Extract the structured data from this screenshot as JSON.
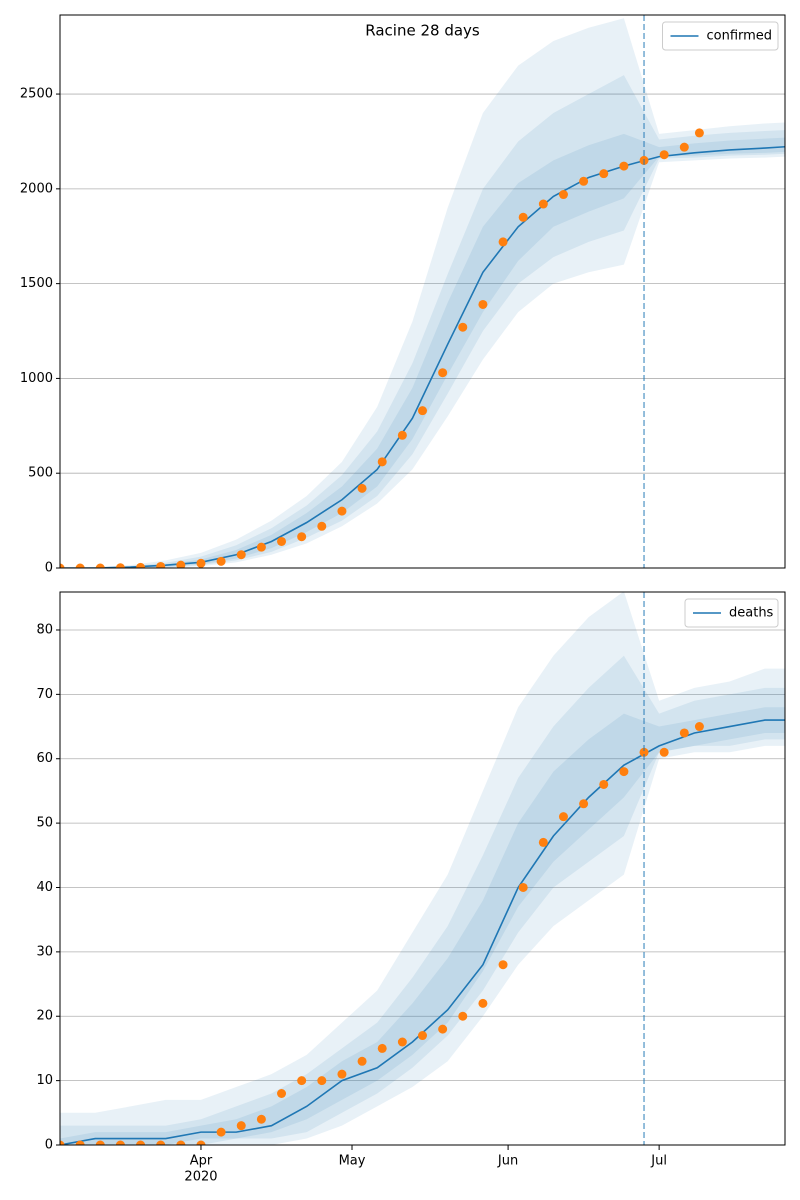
{
  "chart_data": [
    {
      "type": "line",
      "title": "Racine 28 days",
      "grid": "y",
      "legend": "upper right",
      "xlim": [
        "2020-03-04",
        "2020-07-26"
      ],
      "ylim": [
        0,
        2917
      ],
      "yticks": [
        0,
        500,
        1000,
        1500,
        2000,
        2500
      ],
      "vline": "2020-06-28",
      "band_opacity": 0.1,
      "series": [
        {
          "name": "confirmed",
          "color": "#1f77b4",
          "x": [
            "2020-03-04",
            "2020-03-11",
            "2020-03-18",
            "2020-03-25",
            "2020-04-01",
            "2020-04-08",
            "2020-04-15",
            "2020-04-22",
            "2020-04-29",
            "2020-05-06",
            "2020-05-13",
            "2020-05-20",
            "2020-05-27",
            "2020-06-03",
            "2020-06-10",
            "2020-06-17",
            "2020-06-24",
            "2020-07-01",
            "2020-07-08",
            "2020-07-15",
            "2020-07-22",
            "2020-07-26"
          ],
          "values": [
            0,
            0,
            5,
            15,
            30,
            70,
            140,
            240,
            360,
            520,
            790,
            1180,
            1560,
            1800,
            1960,
            2060,
            2120,
            2170,
            2190,
            2205,
            2215,
            2222
          ],
          "bands": [
            {
              "upper": [
                0,
                5,
                15,
                40,
                80,
                150,
                250,
                380,
                560,
                850,
                1300,
                1900,
                2400,
                2650,
                2780,
                2850,
                2900,
                2290,
                2310,
                2330,
                2345,
                2350
              ],
              "lower": [
                0,
                0,
                0,
                0,
                10,
                30,
                70,
                130,
                220,
                340,
                520,
                800,
                1100,
                1350,
                1500,
                1560,
                1600,
                2140,
                2150,
                2160,
                2165,
                2170
              ]
            },
            {
              "upper": [
                0,
                3,
                10,
                28,
                60,
                120,
                210,
                330,
                490,
                720,
                1080,
                1550,
                2000,
                2250,
                2400,
                2500,
                2600,
                2260,
                2280,
                2295,
                2305,
                2310
              ],
              "lower": [
                0,
                0,
                0,
                2,
                15,
                40,
                85,
                160,
                250,
                380,
                600,
                920,
                1250,
                1500,
                1640,
                1720,
                1780,
                2160,
                2165,
                2175,
                2180,
                2185
              ]
            },
            {
              "upper": [
                0,
                2,
                7,
                20,
                45,
                95,
                175,
                290,
                430,
                630,
                950,
                1400,
                1800,
                2030,
                2150,
                2230,
                2290,
                2220,
                2240,
                2255,
                2265,
                2270
              ],
              "lower": [
                0,
                0,
                2,
                7,
                20,
                50,
                105,
                190,
                290,
                430,
                680,
                1020,
                1350,
                1620,
                1800,
                1880,
                1950,
                2170,
                2175,
                2185,
                2190,
                2195
              ]
            }
          ]
        },
        {
          "color": "#ff7f0e",
          "marker": "o",
          "x": [
            "2020-03-04",
            "2020-03-08",
            "2020-03-12",
            "2020-03-16",
            "2020-03-20",
            "2020-03-24",
            "2020-03-28",
            "2020-04-01",
            "2020-04-05",
            "2020-04-09",
            "2020-04-13",
            "2020-04-17",
            "2020-04-21",
            "2020-04-25",
            "2020-04-29",
            "2020-05-03",
            "2020-05-07",
            "2020-05-11",
            "2020-05-15",
            "2020-05-19",
            "2020-05-23",
            "2020-05-27",
            "2020-05-31",
            "2020-06-04",
            "2020-06-08",
            "2020-06-12",
            "2020-06-16",
            "2020-06-20",
            "2020-06-24",
            "2020-06-28",
            "2020-07-02",
            "2020-07-06",
            "2020-07-09"
          ],
          "values": [
            0,
            0,
            0,
            1,
            3,
            8,
            15,
            25,
            35,
            70,
            110,
            140,
            165,
            220,
            300,
            420,
            560,
            700,
            830,
            1030,
            1270,
            1390,
            1720,
            1850,
            1920,
            1970,
            2040,
            2080,
            2120,
            2150,
            2180,
            2220,
            2295
          ]
        }
      ]
    },
    {
      "type": "line",
      "grid": "y",
      "legend": "upper right",
      "xlim": [
        "2020-03-04",
        "2020-07-26"
      ],
      "ylim": [
        0,
        85.9
      ],
      "yticks": [
        0,
        10,
        20,
        30,
        40,
        50,
        60,
        70,
        80
      ],
      "xticks": [
        {
          "value": "2020-04-01",
          "label": "Apr",
          "sublabel": "2020"
        },
        {
          "value": "2020-05-01",
          "label": "May"
        },
        {
          "value": "2020-06-01",
          "label": "Jun"
        },
        {
          "value": "2020-07-01",
          "label": "Jul"
        }
      ],
      "vline": "2020-06-28",
      "band_opacity": 0.1,
      "series": [
        {
          "name": "deaths",
          "color": "#1f77b4",
          "x": [
            "2020-03-04",
            "2020-03-11",
            "2020-03-18",
            "2020-03-25",
            "2020-04-01",
            "2020-04-08",
            "2020-04-15",
            "2020-04-22",
            "2020-04-29",
            "2020-05-06",
            "2020-05-13",
            "2020-05-20",
            "2020-05-27",
            "2020-06-03",
            "2020-06-10",
            "2020-06-17",
            "2020-06-24",
            "2020-07-01",
            "2020-07-08",
            "2020-07-15",
            "2020-07-22",
            "2020-07-26"
          ],
          "values": [
            0,
            1,
            1,
            1,
            2,
            2,
            3,
            6,
            10,
            12,
            16,
            21,
            28,
            40,
            48,
            54,
            59,
            62,
            64,
            65,
            66,
            66
          ],
          "bands": [
            {
              "upper": [
                5,
                5,
                6,
                7,
                7,
                9,
                11,
                14,
                19,
                24,
                33,
                42,
                55,
                68,
                76,
                82,
                86,
                69,
                71,
                72,
                74,
                74
              ],
              "lower": [
                0,
                0,
                0,
                0,
                0,
                0,
                0,
                1,
                3,
                6,
                9,
                13,
                20,
                28,
                34,
                38,
                42,
                60,
                61,
                61,
                62,
                62
              ]
            },
            {
              "upper": [
                3,
                3,
                3,
                3,
                4,
                6,
                8,
                11,
                15,
                19,
                26,
                34,
                45,
                57,
                65,
                71,
                76,
                67,
                69,
                70,
                71,
                71
              ],
              "lower": [
                0,
                0,
                0,
                0,
                0,
                1,
                1,
                2,
                5,
                8,
                12,
                17,
                24,
                33,
                40,
                44,
                48,
                61,
                62,
                62,
                63,
                63
              ]
            },
            {
              "upper": [
                1,
                2,
                2,
                2,
                3,
                4,
                6,
                9,
                13,
                16,
                22,
                29,
                38,
                50,
                58,
                63,
                67,
                65,
                66,
                67,
                68,
                68
              ],
              "lower": [
                0,
                0,
                0,
                0,
                1,
                1,
                2,
                4,
                7,
                10,
                14,
                19,
                27,
                37,
                44,
                49,
                54,
                61,
                62,
                63,
                64,
                64
              ]
            }
          ]
        },
        {
          "color": "#ff7f0e",
          "marker": "o",
          "x": [
            "2020-03-04",
            "2020-03-08",
            "2020-03-12",
            "2020-03-16",
            "2020-03-20",
            "2020-03-24",
            "2020-03-28",
            "2020-04-01",
            "2020-04-05",
            "2020-04-09",
            "2020-04-13",
            "2020-04-17",
            "2020-04-21",
            "2020-04-25",
            "2020-04-29",
            "2020-05-03",
            "2020-05-07",
            "2020-05-11",
            "2020-05-15",
            "2020-05-19",
            "2020-05-23",
            "2020-05-27",
            "2020-05-31",
            "2020-06-04",
            "2020-06-08",
            "2020-06-12",
            "2020-06-16",
            "2020-06-20",
            "2020-06-24",
            "2020-06-28",
            "2020-07-02",
            "2020-07-06",
            "2020-07-09"
          ],
          "values": [
            0,
            0,
            0,
            0,
            0,
            0,
            0,
            0,
            2,
            3,
            4,
            8,
            10,
            10,
            11,
            13,
            15,
            16,
            17,
            18,
            20,
            22,
            28,
            40,
            47,
            51,
            53,
            56,
            58,
            61,
            61,
            64,
            65
          ]
        }
      ]
    }
  ]
}
